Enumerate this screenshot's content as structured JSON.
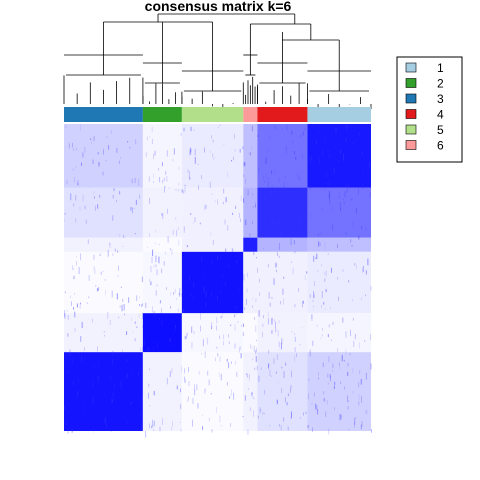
{
  "chart_data": {
    "type": "heatmap",
    "title": "consensus matrix k=6",
    "legend": {
      "placement": "right",
      "entries": [
        {
          "label": "1",
          "color": "#a6cee3"
        },
        {
          "label": "2",
          "color": "#33a02c"
        },
        {
          "label": "3",
          "color": "#1f78b4"
        },
        {
          "label": "4",
          "color": "#e31a1c"
        },
        {
          "label": "5",
          "color": "#b2df8a"
        },
        {
          "label": "6",
          "color": "#fb9a99"
        }
      ]
    },
    "value_color_low": "#ffffff",
    "value_color_high": "#0000ff",
    "column_order_groups": [
      {
        "cluster": "3",
        "size": 0.257
      },
      {
        "cluster": "2",
        "size": 0.127
      },
      {
        "cluster": "5",
        "size": 0.2
      },
      {
        "cluster": "6",
        "size": 0.046
      },
      {
        "cluster": "4",
        "size": 0.163
      },
      {
        "cluster": "1",
        "size": 0.207
      }
    ],
    "block_strength": [
      [
        0.92,
        0.05,
        0.02,
        0.05,
        0.12,
        0.18
      ],
      [
        0.05,
        0.95,
        0.03,
        0.02,
        0.05,
        0.04
      ],
      [
        0.02,
        0.03,
        0.93,
        0.06,
        0.06,
        0.08
      ],
      [
        0.05,
        0.02,
        0.06,
        0.88,
        0.3,
        0.25
      ],
      [
        0.12,
        0.05,
        0.06,
        0.3,
        0.82,
        0.55
      ],
      [
        0.18,
        0.04,
        0.08,
        0.25,
        0.55,
        0.9
      ]
    ],
    "grid": false
  }
}
